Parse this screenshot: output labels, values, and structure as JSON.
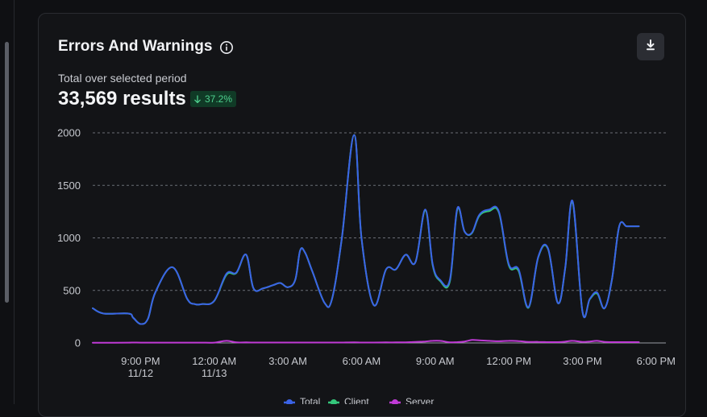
{
  "card": {
    "title": "Errors And Warnings",
    "subtitle": "Total over selected period",
    "total": "33,569 results",
    "change": "37.2%",
    "change_direction": "down",
    "change_color": "#4fd08f",
    "icons": {
      "info": "info-icon",
      "download": "download-icon",
      "trend": "arrow-down-icon"
    }
  },
  "chart_data": {
    "type": "line",
    "title": "",
    "xlabel": "",
    "ylabel": "",
    "ylim": [
      0,
      2000
    ],
    "yticks": [
      0,
      500,
      1000,
      1500,
      2000
    ],
    "xlim": [
      -1.95,
      21.4
    ],
    "xticks": [
      {
        "x": 0,
        "label": "9:00 PM",
        "sub": "11/12"
      },
      {
        "x": 3,
        "label": "12:00 AM",
        "sub": "11/13"
      },
      {
        "x": 6,
        "label": "3:00 AM",
        "sub": ""
      },
      {
        "x": 9,
        "label": "6:00 AM",
        "sub": ""
      },
      {
        "x": 12,
        "label": "9:00 AM",
        "sub": ""
      },
      {
        "x": 15,
        "label": "12:00 PM",
        "sub": ""
      },
      {
        "x": 18,
        "label": "3:00 PM",
        "sub": ""
      },
      {
        "x": 21,
        "label": "6:00 PM",
        "sub": ""
      }
    ],
    "x_units": "hours after 9:00 PM 11/12",
    "grid": true,
    "legend_position": "bottom",
    "x": [
      -1.95,
      -1.5,
      -0.5,
      -0.3,
      0,
      0.3,
      0.6,
      1.3,
      1.9,
      2.2,
      2.5,
      3.0,
      3.5,
      3.9,
      4.3,
      4.6,
      5.0,
      5.4,
      5.7,
      6.0,
      6.3,
      6.5,
      6.7,
      7.0,
      7.5,
      7.8,
      8.2,
      8.7,
      9.0,
      9.5,
      10.0,
      10.4,
      10.8,
      11.2,
      11.6,
      11.9,
      12.2,
      12.6,
      12.9,
      13.2,
      13.5,
      13.8,
      14.2,
      14.6,
      15.0,
      15.4,
      15.8,
      16.2,
      16.6,
      17.0,
      17.3,
      17.6,
      18.0,
      18.3,
      18.6,
      18.9,
      19.2,
      19.5,
      19.8,
      20.1,
      20.3,
      20.5,
      20.7,
      21.0,
      21.4
    ],
    "series": [
      {
        "name": "Total",
        "color": "#3b63e6",
        "values": [
          330,
          280,
          280,
          240,
          180,
          230,
          480,
          720,
          420,
          370,
          370,
          400,
          660,
          670,
          840,
          520,
          520,
          550,
          570,
          530,
          600,
          880,
          860,
          680,
          380,
          420,
          1000,
          1980,
          1000,
          360,
          700,
          700,
          840,
          770,
          1270,
          750,
          600,
          600,
          1280,
          1060,
          1050,
          1220,
          1270,
          1250,
          750,
          700,
          340,
          820,
          900,
          380,
          720,
          1350,
          300,
          420,
          480,
          330,
          600,
          1110,
          1110,
          1110,
          1110,
          1110,
          1110,
          1110,
          1110
        ]
      },
      {
        "name": "Client",
        "color": "#34c77b",
        "values": [
          330,
          280,
          280,
          240,
          180,
          230,
          480,
          720,
          420,
          370,
          370,
          400,
          650,
          665,
          840,
          520,
          520,
          550,
          570,
          530,
          600,
          880,
          860,
          680,
          380,
          420,
          1000,
          1980,
          1000,
          360,
          700,
          700,
          840,
          770,
          1265,
          740,
          590,
          585,
          1270,
          1060,
          1045,
          1210,
          1255,
          1240,
          740,
          685,
          335,
          815,
          895,
          380,
          715,
          1340,
          300,
          415,
          470,
          330,
          600,
          1110,
          1110,
          1110,
          1110,
          1110,
          1110,
          1110,
          1110
        ]
      },
      {
        "name": "Server",
        "color": "#c03ad6",
        "values": [
          2,
          2,
          3,
          4,
          3,
          3,
          3,
          3,
          3,
          3,
          3,
          3,
          20,
          5,
          5,
          4,
          4,
          4,
          4,
          4,
          4,
          4,
          4,
          4,
          4,
          4,
          4,
          6,
          4,
          4,
          5,
          5,
          6,
          10,
          14,
          20,
          20,
          6,
          8,
          14,
          28,
          25,
          20,
          16,
          20,
          18,
          10,
          10,
          8,
          8,
          12,
          20,
          10,
          14,
          20,
          10,
          8,
          8,
          8,
          8,
          8,
          8,
          8,
          8,
          8
        ]
      }
    ]
  }
}
